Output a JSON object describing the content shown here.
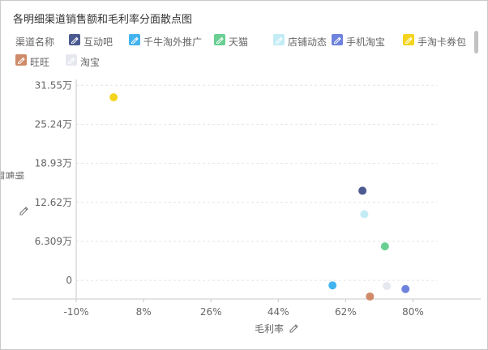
{
  "title": "各明细渠道销售额和毛利率分面散点图",
  "legend": {
    "title": "渠道名称",
    "items": [
      {
        "label": "互动吧",
        "color": "#4b5a8f",
        "icon": "pencil-icon"
      },
      {
        "label": "千牛淘外推广",
        "color": "#43b3f0",
        "icon": "pencil-icon"
      },
      {
        "label": "天猫",
        "color": "#6acf93",
        "icon": "pencil-icon"
      },
      {
        "label": "店铺动态",
        "color": "#c3ecf5",
        "icon": "pencil-icon"
      },
      {
        "label": "手机淘宝",
        "color": "#6f82dd",
        "icon": "pencil-icon"
      },
      {
        "label": "手淘卡券包",
        "color": "#f5d41d",
        "icon": "pencil-icon"
      },
      {
        "label": "旺旺",
        "color": "#cf8a6a",
        "icon": "pencil-icon"
      },
      {
        "label": "淘宝",
        "color": "#e6e8ef",
        "icon": "pencil-icon"
      }
    ]
  },
  "chart_data": {
    "type": "scatter",
    "xlabel": "毛利率",
    "ylabel": "销售额",
    "x_ticks": [
      "-10%",
      "8%",
      "26%",
      "44%",
      "62%",
      "80%"
    ],
    "x_tick_values": [
      -0.1,
      0.08,
      0.26,
      0.44,
      0.62,
      0.8
    ],
    "y_ticks": [
      "0",
      "6.309万",
      "12.62万",
      "18.93万",
      "25.24万",
      "31.55万"
    ],
    "y_tick_values": [
      0,
      63090,
      126200,
      189300,
      252400,
      315500
    ],
    "xlim": [
      -0.1,
      0.89
    ],
    "ylim": [
      -30000,
      325000
    ],
    "grid": true,
    "grid_style": "dashed horizontal",
    "series": [
      {
        "name": "互动吧",
        "color": "#4b5a8f",
        "points": [
          [
            0.665,
            145000
          ]
        ]
      },
      {
        "name": "千牛淘外推广",
        "color": "#43b3f0",
        "points": [
          [
            0.585,
            -8000
          ]
        ]
      },
      {
        "name": "天猫",
        "color": "#6acf93",
        "points": [
          [
            0.725,
            55000
          ]
        ]
      },
      {
        "name": "店铺动态",
        "color": "#c3ecf5",
        "points": [
          [
            0.67,
            107000
          ]
        ]
      },
      {
        "name": "手机淘宝",
        "color": "#6f82dd",
        "points": [
          [
            0.78,
            -14000
          ]
        ]
      },
      {
        "name": "手淘卡券包",
        "color": "#f5d41d",
        "points": [
          [
            0.0,
            296000
          ]
        ]
      },
      {
        "name": "旺旺",
        "color": "#cf8a6a",
        "points": [
          [
            0.685,
            -26000
          ]
        ]
      },
      {
        "name": "淘宝",
        "color": "#e6e8ef",
        "points": [
          [
            0.73,
            -9000
          ]
        ]
      }
    ]
  }
}
